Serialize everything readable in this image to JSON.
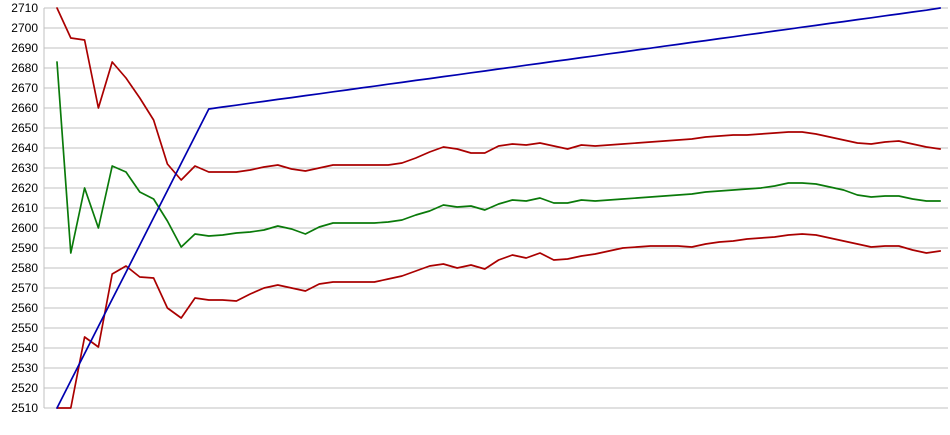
{
  "chart_data": {
    "type": "line",
    "title": "",
    "xlabel": "",
    "ylabel": "",
    "x_axis": {
      "tick_labels_visible": false
    },
    "y_axis": {
      "min": 2510,
      "max": 2710,
      "step": 10,
      "ticks": [
        "2710",
        "2700",
        "2690",
        "2680",
        "2670",
        "2660",
        "2650",
        "2640",
        "2630",
        "2620",
        "2610",
        "2600",
        "2590",
        "2580",
        "2570",
        "2560",
        "2550",
        "2540",
        "2530",
        "2520",
        "2510"
      ]
    },
    "grid": true,
    "legend": "none",
    "colors": {
      "background": "#ffffff",
      "gridline": "#c0c0c0",
      "axis_line": "#c0c0c0",
      "tick_text": "#000000",
      "upper_band": "#aa0000",
      "middle_line": "#0a7a0a",
      "lower_band": "#aa0000",
      "trend_line": "#0000b0"
    },
    "series": [
      {
        "name": "upper-band",
        "color": "#aa0000",
        "values": [
          2710,
          2695,
          2694,
          2660,
          2683,
          2675,
          2665,
          2654,
          2632,
          2624,
          2631,
          2628,
          2628,
          2628,
          2629,
          2630.5,
          2631.5,
          2629.5,
          2628.5,
          2630,
          2631.5,
          2631.5,
          2631.5,
          2631.5,
          2631.5,
          2632.5,
          2635,
          2638,
          2640.5,
          2639.5,
          2637.5,
          2637.5,
          2641,
          2642,
          2641.5,
          2642.5,
          2641,
          2639.5,
          2641.5,
          2641,
          2641.5,
          2642,
          2642.5,
          2643,
          2643.5,
          2644,
          2644.5,
          2645.5,
          2646,
          2646.5,
          2646.5,
          2647,
          2647.5,
          2648,
          2648,
          2647,
          2645.5,
          2644,
          2642.5,
          2642,
          2643,
          2643.5,
          2642,
          2640.5,
          2639.5
        ]
      },
      {
        "name": "middle-line",
        "color": "#0a7a0a",
        "values": [
          2683,
          2587.5,
          2620,
          2600,
          2631,
          2628,
          2618,
          2614.5,
          2603.5,
          2590.5,
          2597,
          2596,
          2596.5,
          2597.5,
          2598,
          2599,
          2601,
          2599.5,
          2597,
          2600.5,
          2602.5,
          2602.5,
          2602.5,
          2602.5,
          2603,
          2604,
          2606.5,
          2608.5,
          2611.5,
          2610.5,
          2611,
          2609,
          2612,
          2614,
          2613.5,
          2615,
          2612.5,
          2612.5,
          2614,
          2613.5,
          2614,
          2614.5,
          2615,
          2615.5,
          2616,
          2616.5,
          2617,
          2618,
          2618.5,
          2619,
          2619.5,
          2620,
          2621,
          2622.5,
          2622.5,
          2622,
          2620.5,
          2619,
          2616.5,
          2615.5,
          2616,
          2616,
          2614.5,
          2613.5,
          2613.5
        ]
      },
      {
        "name": "lower-band",
        "color": "#aa0000",
        "values": [
          2510,
          2510,
          2545.5,
          2540.5,
          2577,
          2581,
          2575.5,
          2575,
          2560,
          2555,
          2565,
          2564,
          2564,
          2563.5,
          2567,
          2570,
          2571.5,
          2570,
          2568.5,
          2572,
          2573,
          2573,
          2573,
          2573,
          2574.5,
          2576,
          2578.5,
          2581,
          2582,
          2580,
          2581.5,
          2579.5,
          2584,
          2586.5,
          2585,
          2587.5,
          2584,
          2584.5,
          2586,
          2587,
          2588.5,
          2590,
          2590.5,
          2591,
          2591,
          2591,
          2590.5,
          2592,
          2593,
          2593.5,
          2594.5,
          2595,
          2595.5,
          2596.5,
          2597,
          2596.5,
          2595,
          2593.5,
          2592,
          2590.5,
          2591,
          2591,
          2589,
          2587.5,
          2588.5
        ]
      },
      {
        "name": "trend-line",
        "color": "#0000b0",
        "values": [
          2510,
          2523.6,
          2537.2,
          2550.8,
          2564.4,
          2577.9,
          2591.5,
          2605.1,
          2618.7,
          2632.3,
          2645.9,
          2659.5,
          2660.5,
          2661.4,
          2662.4,
          2663.3,
          2664.3,
          2665.2,
          2666.2,
          2667.1,
          2668.1,
          2669,
          2670,
          2670.9,
          2671.9,
          2672.8,
          2673.8,
          2674.7,
          2675.7,
          2676.6,
          2677.6,
          2678.5,
          2679.5,
          2680.4,
          2681.4,
          2682.3,
          2683.3,
          2684.2,
          2685.2,
          2686.1,
          2687.1,
          2688,
          2689,
          2689.9,
          2690.9,
          2691.8,
          2692.8,
          2693.7,
          2694.7,
          2695.6,
          2696.6,
          2697.5,
          2698.5,
          2699.4,
          2700.4,
          2701.3,
          2702.3,
          2703.2,
          2704.2,
          2705.1,
          2706.1,
          2707,
          2708,
          2708.9,
          2710
        ]
      }
    ]
  }
}
